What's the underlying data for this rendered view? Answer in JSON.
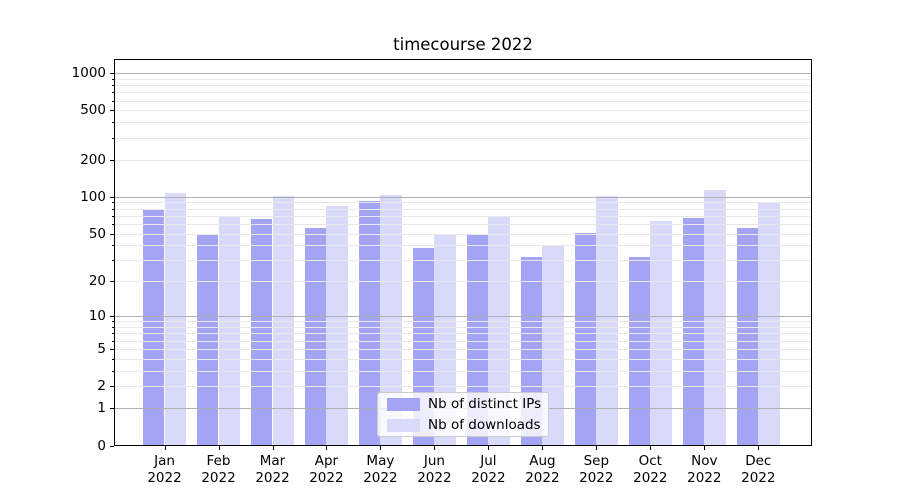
{
  "chart_data": {
    "type": "bar",
    "title": "timecourse 2022",
    "categories": [
      "Jan 2022",
      "Feb 2022",
      "Mar 2022",
      "Apr 2022",
      "May 2022",
      "Jun 2022",
      "Jul 2022",
      "Aug 2022",
      "Sep 2022",
      "Oct 2022",
      "Nov 2022",
      "Dec 2022"
    ],
    "series": [
      {
        "name": "Nb of distinct IPs",
        "color": "#a4a4f5",
        "values": [
          78,
          50,
          66,
          56,
          92,
          38,
          50,
          32,
          51,
          32,
          67,
          56
        ]
      },
      {
        "name": "Nb of downloads",
        "color": "#d9d9fa",
        "values": [
          107,
          70,
          102,
          84,
          104,
          50,
          69,
          40,
          102,
          63,
          113,
          90
        ]
      }
    ],
    "yaxis": {
      "scale": "log1p",
      "ticks": [
        0,
        1,
        2,
        5,
        10,
        20,
        50,
        100,
        200,
        500,
        1000
      ],
      "major_gridline_ticks": [
        1,
        10,
        100,
        1000
      ],
      "ylim": [
        0,
        1280
      ]
    },
    "xlabel": "",
    "ylabel": "",
    "grid": {
      "major_color": "#b0b0b0",
      "minor_color": "#e8e8e8"
    },
    "legend": {
      "position": "lower center",
      "entries": [
        "Nb of distinct IPs",
        "Nb of downloads"
      ]
    }
  }
}
